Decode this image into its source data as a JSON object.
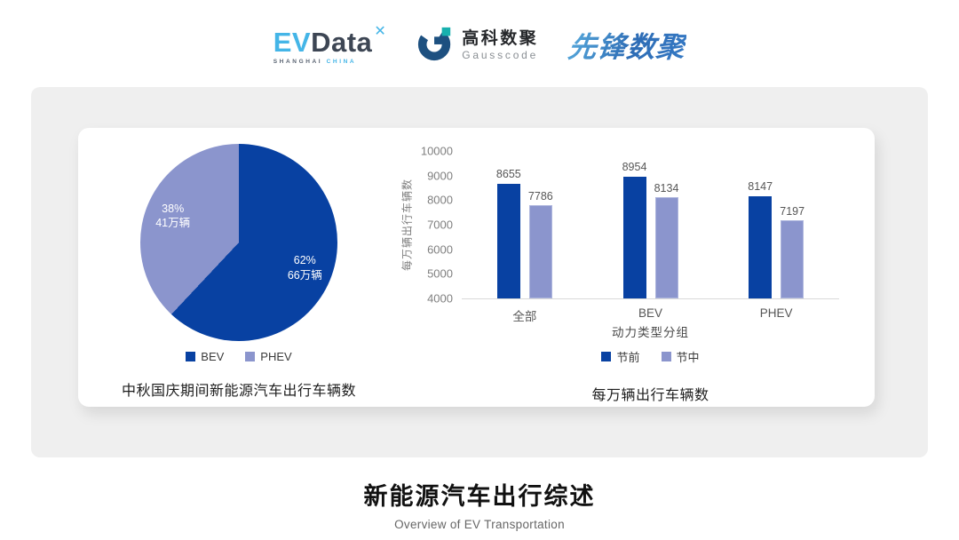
{
  "header": {
    "evdata": {
      "ev": "EV",
      "data": "Data",
      "mark": "✕",
      "sub_left": "SHANGHAI",
      "sub_right": "CHINA"
    },
    "gausscode": {
      "cn": "高科数聚",
      "en": "Gausscode"
    },
    "pioneer": {
      "text": "先锋数聚"
    }
  },
  "chart_data": [
    {
      "type": "pie",
      "title": "中秋国庆期间新能源汽车出行车辆数",
      "slices": [
        {
          "label": "BEV",
          "percent": 62,
          "value_label": "66万辆",
          "color": "#0841a2"
        },
        {
          "label": "PHEV",
          "percent": 38,
          "value_label": "41万辆",
          "color": "#8b95cd"
        }
      ],
      "start_angle": "12-oclock-clockwise",
      "legend_position": "bottom"
    },
    {
      "type": "bar",
      "title": "每万辆出行车辆数",
      "categories": [
        "全部",
        "BEV",
        "PHEV"
      ],
      "series": [
        {
          "name": "节前",
          "color": "#0841a2",
          "values": [
            8655,
            8954,
            8147
          ]
        },
        {
          "name": "节中",
          "color": "#8b95cd",
          "values": [
            7786,
            8134,
            7197
          ]
        }
      ],
      "xlabel": "动力类型分组",
      "ylabel": "每万辆出行车辆数",
      "ylim": [
        4000,
        10000
      ],
      "ytick_step": 1000,
      "grid": false,
      "legend_position": "bottom"
    }
  ],
  "footer": {
    "title": "新能源汽车出行综述",
    "subtitle": "Overview of EV Transportation"
  }
}
